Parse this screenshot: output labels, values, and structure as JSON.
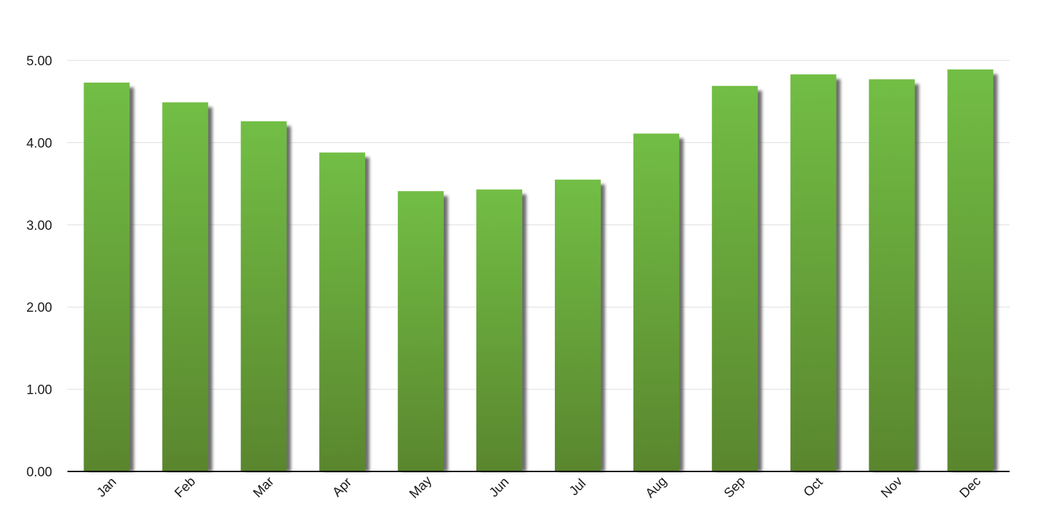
{
  "chart_data": {
    "type": "bar",
    "categories": [
      "Jan",
      "Feb",
      "Mar",
      "Apr",
      "May",
      "Jun",
      "Jul",
      "Aug",
      "Sep",
      "Oct",
      "Nov",
      "Dec"
    ],
    "values": [
      4.73,
      4.49,
      4.26,
      3.88,
      3.41,
      3.43,
      3.55,
      4.11,
      4.69,
      4.83,
      4.77,
      4.89
    ],
    "yticks": [
      "0.00",
      "1.00",
      "2.00",
      "3.00",
      "4.00",
      "5.00"
    ],
    "ylim": [
      0,
      5
    ],
    "title": "",
    "xlabel": "",
    "ylabel": "",
    "grid": true,
    "legend": "none",
    "colors": {
      "bar_top": "#72BE45",
      "bar_bottom": "#5A862E",
      "shadow": "#555555",
      "grid": "#dddddd",
      "axis": "#000000"
    }
  }
}
